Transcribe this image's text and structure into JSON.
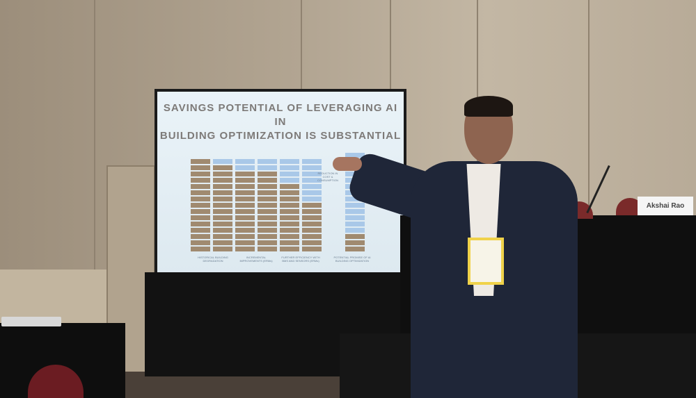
{
  "slide": {
    "title_line1": "SAVINGS POTENTIAL OF LEVERAGING AI IN",
    "title_line2": "BUILDING OPTIMIZATION IS SUBSTANTIAL",
    "columns": [
      {
        "brown_cells": 15,
        "total_cells": 15
      },
      {
        "brown_cells": 14,
        "total_cells": 15
      },
      {
        "brown_cells": 13,
        "total_cells": 15
      },
      {
        "brown_cells": 13,
        "total_cells": 15
      },
      {
        "brown_cells": 11,
        "total_cells": 15
      },
      {
        "brown_cells": 8,
        "total_cells": 15
      },
      {
        "brown_cells": 3,
        "total_cells": 16
      }
    ],
    "colors": {
      "used": "#a08a70",
      "saved": "#a9c8e8"
    },
    "labels": {
      "group1": "HISTORICAL BUILDING DEGRADATION",
      "group2": "INCREMENTAL IMPROVEMENTS (ERMs)",
      "group3": "FURTHER EFFICIENCY WITH BMS AND SENSORS (ERMs)",
      "group4": "POTENTIAL PROMISE OF AI BUILDING OPTIMIZATION",
      "reduction": "REDUCTION IN COST & CONSUMPTION"
    }
  },
  "placard": {
    "name": "Akshai Rao"
  }
}
